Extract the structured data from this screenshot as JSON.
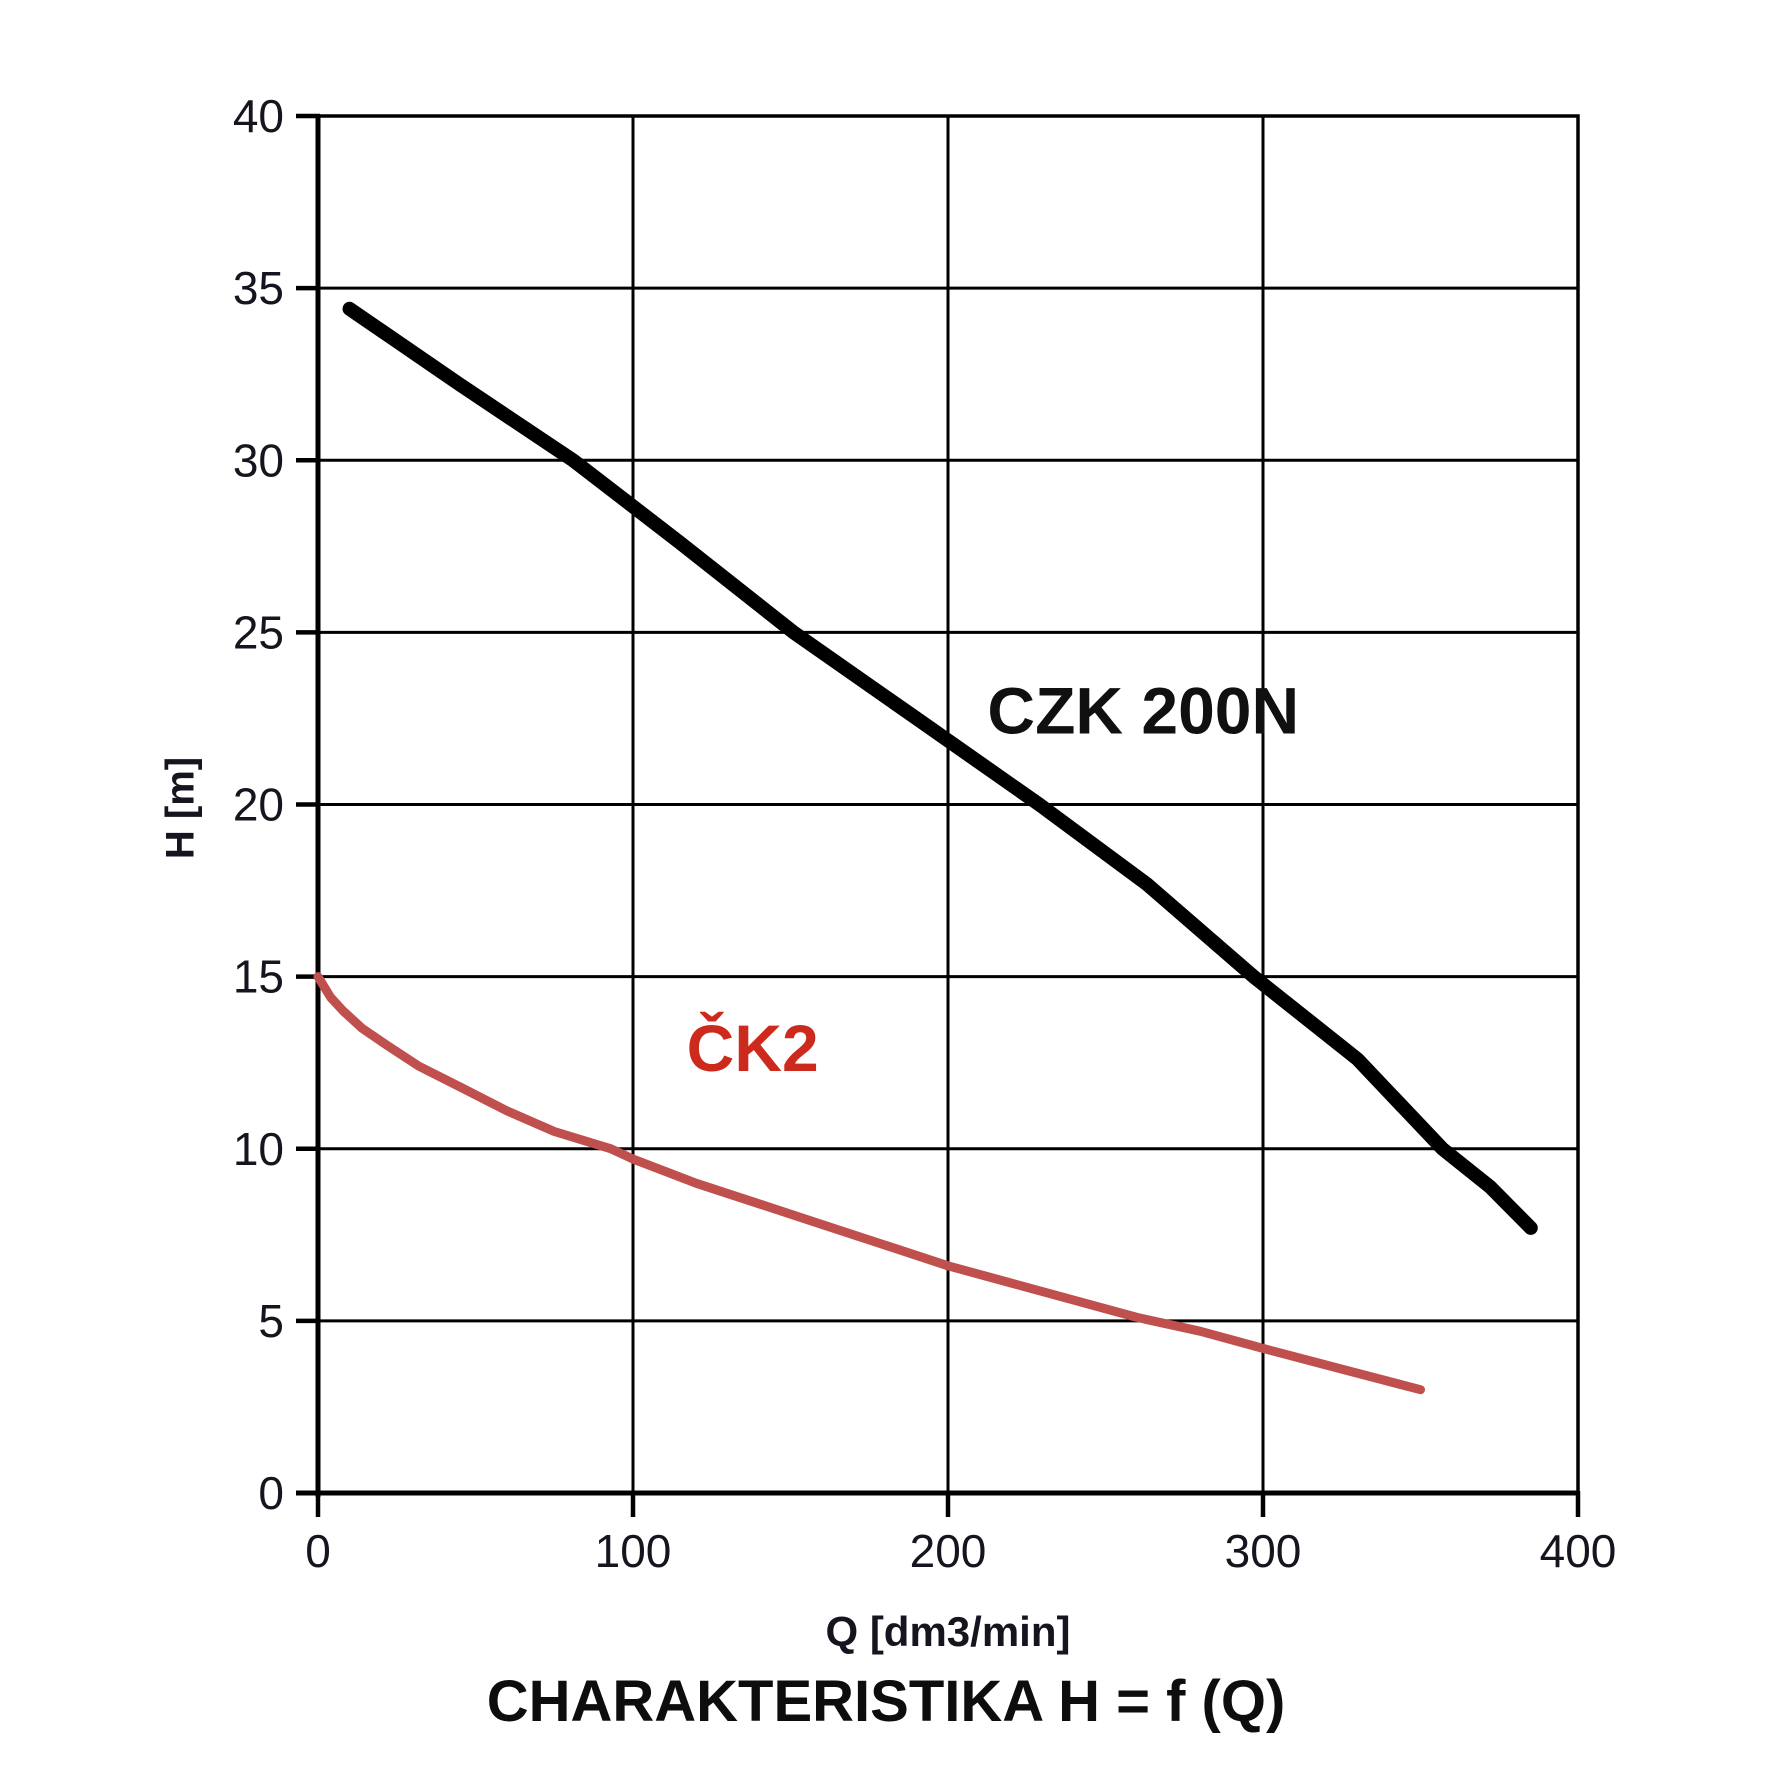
{
  "figure": {
    "background": "#ffffff"
  },
  "chart_data": {
    "type": "line",
    "title": "CHARAKTERISTIKA H = f (Q)",
    "xlabel": "Q [dm3/min]",
    "ylabel": "H [m]",
    "xlim": [
      0,
      400
    ],
    "ylim": [
      0,
      40
    ],
    "x_ticks": [
      0,
      100,
      200,
      300,
      400
    ],
    "y_ticks": [
      0,
      5,
      10,
      15,
      20,
      25,
      30,
      35,
      40
    ],
    "grid": true,
    "frame": true,
    "legend_position": "inline-labels",
    "colors": {
      "grid": "#000000",
      "axis": "#000000",
      "tick_label": "#15151f"
    },
    "series": [
      {
        "name": "CZK 200N",
        "color": "#000000",
        "label_color": "#101010",
        "line_width": 14,
        "label_anchor": [
          262,
          22.7
        ],
        "points": [
          [
            10,
            34.4
          ],
          [
            45,
            32.2
          ],
          [
            81,
            30
          ],
          [
            115,
            27.6
          ],
          [
            151,
            25
          ],
          [
            190,
            22.5
          ],
          [
            229,
            20
          ],
          [
            263,
            17.7
          ],
          [
            297,
            15
          ],
          [
            330,
            12.6
          ],
          [
            357,
            10
          ],
          [
            372,
            8.9
          ],
          [
            385,
            7.7
          ]
        ]
      },
      {
        "name": "ČK2",
        "color": "#c0504d",
        "label_color": "#cd2a1e",
        "line_width": 9,
        "label_anchor": [
          138,
          12.9
        ],
        "points": [
          [
            0,
            15
          ],
          [
            4,
            14.4
          ],
          [
            8,
            14.0
          ],
          [
            14,
            13.5
          ],
          [
            22,
            13.0
          ],
          [
            32,
            12.4
          ],
          [
            45,
            11.8
          ],
          [
            60,
            11.1
          ],
          [
            75,
            10.5
          ],
          [
            93,
            10.0
          ],
          [
            100,
            9.7
          ],
          [
            120,
            9.0
          ],
          [
            140,
            8.4
          ],
          [
            160,
            7.8
          ],
          [
            180,
            7.2
          ],
          [
            200,
            6.6
          ],
          [
            220,
            6.1
          ],
          [
            240,
            5.6
          ],
          [
            260,
            5.1
          ],
          [
            280,
            4.7
          ],
          [
            300,
            4.2
          ],
          [
            325,
            3.6
          ],
          [
            350,
            3.0
          ]
        ]
      }
    ]
  }
}
